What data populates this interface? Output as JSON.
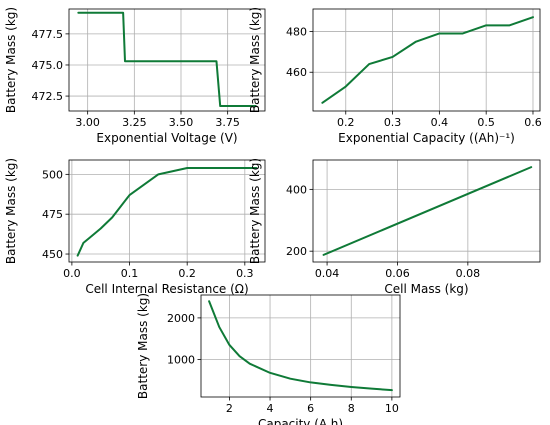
{
  "chart_data": [
    {
      "type": "line",
      "xlabel": "Exponential Voltage (V)",
      "ylabel": "Battery Mass (kg)",
      "xlim": [
        2.9,
        3.95
      ],
      "ylim": [
        471.3,
        479.5
      ],
      "xticks": [
        3.0,
        3.25,
        3.5,
        3.75
      ],
      "xtick_labels": [
        "3.00",
        "3.25",
        "3.50",
        "3.75"
      ],
      "yticks": [
        472.5,
        475.0,
        477.5
      ],
      "ytick_labels": [
        "472.5",
        "475.0",
        "477.5"
      ],
      "grid": true,
      "color": "#0f7a37",
      "series": [
        {
          "x": [
            2.95,
            3.19,
            3.2,
            3.69,
            3.71,
            3.9
          ],
          "y": [
            479.2,
            479.2,
            475.3,
            475.3,
            471.7,
            471.7
          ]
        }
      ]
    },
    {
      "type": "line",
      "xlabel": "Exponential Capacity ((Ah)⁻¹)",
      "ylabel": "Battery Mass (kg)",
      "xlim": [
        0.13,
        0.615
      ],
      "ylim": [
        441,
        491
      ],
      "xticks": [
        0.2,
        0.3,
        0.4,
        0.5,
        0.6
      ],
      "xtick_labels": [
        "0.2",
        "0.3",
        "0.4",
        "0.5",
        "0.6"
      ],
      "yticks": [
        460,
        480
      ],
      "ytick_labels": [
        "460",
        "480"
      ],
      "grid": true,
      "color": "#0f7a37",
      "series": [
        {
          "x": [
            0.15,
            0.2,
            0.25,
            0.3,
            0.35,
            0.4,
            0.45,
            0.5,
            0.55,
            0.6
          ],
          "y": [
            445,
            453,
            464,
            467.5,
            475,
            479,
            479,
            483,
            483,
            487
          ]
        }
      ]
    },
    {
      "type": "line",
      "xlabel": "Cell Internal Resistance (Ω)",
      "ylabel": "Battery Mass (kg)",
      "xlim": [
        -0.005,
        0.335
      ],
      "ylim": [
        445,
        509
      ],
      "xticks": [
        0.0,
        0.1,
        0.2,
        0.3
      ],
      "xtick_labels": [
        "0.0",
        "0.1",
        "0.2",
        "0.3"
      ],
      "yticks": [
        450,
        475,
        500
      ],
      "ytick_labels": [
        "450",
        "475",
        "500"
      ],
      "grid": true,
      "color": "#0f7a37",
      "series": [
        {
          "x": [
            0.01,
            0.02,
            0.03,
            0.05,
            0.07,
            0.1,
            0.15,
            0.2,
            0.25,
            0.3,
            0.32
          ],
          "y": [
            449,
            457,
            460,
            466,
            473,
            487,
            500,
            504,
            504,
            504,
            504
          ]
        }
      ]
    },
    {
      "type": "line",
      "xlabel": "Cell Mass (kg)",
      "ylabel": "Battery Mass (kg)",
      "xlim": [
        0.036,
        0.1005
      ],
      "ylim": [
        165,
        495
      ],
      "xticks": [
        0.04,
        0.06,
        0.08
      ],
      "xtick_labels": [
        "0.04",
        "0.06",
        "0.08"
      ],
      "yticks": [
        200,
        400
      ],
      "ytick_labels": [
        "200",
        "400"
      ],
      "grid": true,
      "color": "#0f7a37",
      "series": [
        {
          "x": [
            0.039,
            0.098
          ],
          "y": [
            188,
            472
          ]
        }
      ]
    },
    {
      "type": "line",
      "xlabel": "Capacity (A.h)",
      "ylabel": "Battery Mass (kg)",
      "xlim": [
        0.6,
        10.4
      ],
      "ylim": [
        100,
        2550
      ],
      "xticks": [
        2,
        4,
        6,
        8,
        10
      ],
      "xtick_labels": [
        "2",
        "4",
        "6",
        "8",
        "10"
      ],
      "yticks": [
        1000,
        2000
      ],
      "ytick_labels": [
        "1000",
        "2000"
      ],
      "grid": true,
      "color": "#0f7a37",
      "series": [
        {
          "x": [
            1.0,
            1.5,
            2.0,
            2.5,
            3.0,
            4.0,
            5.0,
            6.0,
            7.0,
            8.0,
            9.0,
            10.0
          ],
          "y": [
            2400,
            1780,
            1350,
            1080,
            900,
            680,
            540,
            450,
            390,
            340,
            300,
            265
          ]
        }
      ]
    }
  ]
}
